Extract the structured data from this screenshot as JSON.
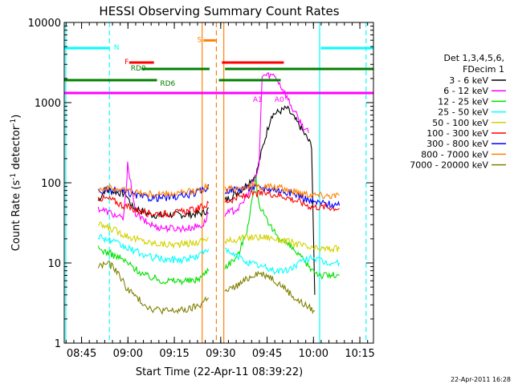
{
  "chart_data": {
    "type": "line",
    "title": "HESSI Observing Summary Count Rates",
    "xlabel": "Start Time (22-Apr-11 08:39:22)",
    "ylabel_main": "Count Rate (s",
    "ylabel_sup1": "-1",
    "ylabel_mid": " detector",
    "ylabel_sup2": "-1",
    "ylabel_end": ")",
    "y_scale": "log",
    "ylim": [
      1,
      10000
    ],
    "x_unit": "minutes since 08:39:22",
    "xlim": [
      0,
      100
    ],
    "x_ticks": [
      {
        "label": "08:45",
        "value": 5.6
      },
      {
        "label": "09:00",
        "value": 20.6
      },
      {
        "label": "09:15",
        "value": 35.6
      },
      {
        "label": "09:30",
        "value": 50.6
      },
      {
        "label": "09:45",
        "value": 65.6
      },
      {
        "label": "10:00",
        "value": 80.6
      },
      {
        "label": "10:15",
        "value": 95.6
      }
    ],
    "y_ticks": [
      {
        "label": "1",
        "value": 1
      },
      {
        "label": "10",
        "value": 10
      },
      {
        "label": "100",
        "value": 100
      },
      {
        "label": "1000",
        "value": 1000
      },
      {
        "label": "10000",
        "value": 10000
      }
    ],
    "legend": {
      "header": [
        "Det 1,3,4,5,6,",
        "FDecim 1"
      ],
      "placement": "right"
    },
    "series": [
      {
        "name": "3 - 6 keV",
        "color": "#000000",
        "gap": [
          48,
          52
        ],
        "points": [
          [
            11,
            60
          ],
          [
            13,
            80
          ],
          [
            16,
            78
          ],
          [
            20,
            72
          ],
          [
            22,
            50
          ],
          [
            25,
            45
          ],
          [
            28,
            40
          ],
          [
            31,
            39
          ],
          [
            35,
            40
          ],
          [
            40,
            40
          ],
          [
            45,
            42
          ],
          [
            47,
            48
          ],
          [
            52,
            60
          ],
          [
            57,
            80
          ],
          [
            62,
            125
          ],
          [
            64,
            260
          ],
          [
            67,
            700
          ],
          [
            72,
            850
          ],
          [
            76,
            520
          ],
          [
            80,
            290
          ],
          [
            81,
            4
          ]
        ]
      },
      {
        "name": "6 - 12 keV",
        "color": "#ff00ff",
        "gap": [
          48,
          52
        ],
        "points": [
          [
            11,
            48
          ],
          [
            15,
            42
          ],
          [
            19,
            35
          ],
          [
            20,
            75
          ],
          [
            20.5,
            185
          ],
          [
            21.5,
            100
          ],
          [
            23,
            42
          ],
          [
            26,
            33
          ],
          [
            30,
            28
          ],
          [
            35,
            27
          ],
          [
            40,
            27
          ],
          [
            45,
            30
          ],
          [
            47,
            45
          ],
          [
            52,
            40
          ],
          [
            57,
            50
          ],
          [
            61,
            95
          ],
          [
            63,
            160
          ],
          [
            64,
            2200
          ],
          [
            68,
            2200
          ],
          [
            69,
            1900
          ],
          [
            71,
            1400
          ],
          [
            74,
            820
          ],
          [
            77,
            520
          ],
          [
            79,
            420
          ]
        ]
      },
      {
        "name": "12 - 25 keV",
        "color": "#00e000",
        "gap": [
          48,
          52
        ],
        "points": [
          [
            11,
            15
          ],
          [
            15,
            13
          ],
          [
            19,
            11
          ],
          [
            22,
            9
          ],
          [
            26,
            7
          ],
          [
            32,
            6
          ],
          [
            37,
            6
          ],
          [
            42,
            6
          ],
          [
            45,
            7
          ],
          [
            47,
            9
          ],
          [
            52,
            9
          ],
          [
            56,
            12
          ],
          [
            59,
            25
          ],
          [
            61,
            70
          ],
          [
            62,
            110
          ],
          [
            63,
            55
          ],
          [
            66,
            30
          ],
          [
            70,
            20
          ],
          [
            74,
            15
          ],
          [
            79,
            9
          ],
          [
            83,
            7
          ],
          [
            89,
            7
          ]
        ]
      },
      {
        "name": "25 - 50 keV",
        "color": "#00ffff",
        "gap": [
          48,
          52
        ],
        "points": [
          [
            11,
            22
          ],
          [
            15,
            19
          ],
          [
            19,
            16
          ],
          [
            23,
            14
          ],
          [
            27,
            12
          ],
          [
            33,
            11
          ],
          [
            38,
            11
          ],
          [
            43,
            12
          ],
          [
            47,
            16
          ],
          [
            52,
            14
          ],
          [
            56,
            12
          ],
          [
            60,
            10
          ],
          [
            64,
            9
          ],
          [
            68,
            8
          ],
          [
            72,
            8
          ],
          [
            76,
            10
          ],
          [
            80,
            12
          ],
          [
            84,
            10
          ],
          [
            89,
            10
          ]
        ]
      },
      {
        "name": "50 - 100 keV",
        "color": "#d2d200",
        "gap": [
          48,
          52
        ],
        "points": [
          [
            11,
            30
          ],
          [
            15,
            27
          ],
          [
            19,
            23
          ],
          [
            23,
            20
          ],
          [
            27,
            18
          ],
          [
            33,
            17
          ],
          [
            38,
            17
          ],
          [
            43,
            18
          ],
          [
            47,
            21
          ],
          [
            52,
            18
          ],
          [
            56,
            20
          ],
          [
            61,
            21
          ],
          [
            66,
            21
          ],
          [
            71,
            19
          ],
          [
            76,
            17
          ],
          [
            80,
            15
          ],
          [
            85,
            15
          ],
          [
            89,
            15
          ]
        ]
      },
      {
        "name": "100 - 300 keV",
        "color": "#ff0000",
        "gap": [
          48,
          52
        ],
        "points": [
          [
            11,
            65
          ],
          [
            15,
            62
          ],
          [
            19,
            52
          ],
          [
            23,
            46
          ],
          [
            27,
            42
          ],
          [
            33,
            41
          ],
          [
            38,
            43
          ],
          [
            43,
            47
          ],
          [
            47,
            55
          ],
          [
            52,
            58
          ],
          [
            56,
            65
          ],
          [
            61,
            72
          ],
          [
            66,
            74
          ],
          [
            71,
            68
          ],
          [
            76,
            58
          ],
          [
            80,
            50
          ],
          [
            85,
            50
          ],
          [
            89,
            48
          ]
        ]
      },
      {
        "name": "300 - 800 keV",
        "color": "#0000ff",
        "gap": [
          48,
          52
        ],
        "points": [
          [
            11,
            78
          ],
          [
            15,
            80
          ],
          [
            19,
            77
          ],
          [
            23,
            70
          ],
          [
            27,
            65
          ],
          [
            33,
            65
          ],
          [
            38,
            68
          ],
          [
            43,
            75
          ],
          [
            47,
            90
          ],
          [
            52,
            80
          ],
          [
            56,
            84
          ],
          [
            61,
            87
          ],
          [
            66,
            86
          ],
          [
            71,
            78
          ],
          [
            76,
            70
          ],
          [
            80,
            58
          ],
          [
            85,
            55
          ],
          [
            89,
            52
          ]
        ]
      },
      {
        "name": "800 - 7000 keV",
        "color": "#ff8000",
        "gap": [
          48,
          52
        ],
        "points": [
          [
            11,
            84
          ],
          [
            15,
            86
          ],
          [
            19,
            82
          ],
          [
            23,
            76
          ],
          [
            27,
            72
          ],
          [
            33,
            72
          ],
          [
            38,
            74
          ],
          [
            43,
            80
          ],
          [
            47,
            92
          ],
          [
            52,
            82
          ],
          [
            56,
            86
          ],
          [
            61,
            90
          ],
          [
            66,
            90
          ],
          [
            71,
            84
          ],
          [
            76,
            76
          ],
          [
            80,
            72
          ],
          [
            85,
            70
          ],
          [
            89,
            70
          ]
        ]
      },
      {
        "name": "7000 - 20000 keV",
        "color": "#808000",
        "gap": [
          48,
          52
        ],
        "points": [
          [
            11,
            9
          ],
          [
            14,
            10
          ],
          [
            17,
            8
          ],
          [
            20,
            5
          ],
          [
            24,
            3.5
          ],
          [
            28,
            2.7
          ],
          [
            34,
            2.5
          ],
          [
            40,
            2.6
          ],
          [
            44,
            3
          ],
          [
            47,
            4
          ],
          [
            52,
            4.3
          ],
          [
            57,
            5.5
          ],
          [
            62,
            7.5
          ],
          [
            66,
            7
          ],
          [
            71,
            5
          ],
          [
            75,
            3.5
          ],
          [
            79,
            2.8
          ],
          [
            81,
            2.5
          ]
        ]
      }
    ],
    "state_bars": [
      {
        "label": "N",
        "color": "#00ffff",
        "segments": [
          [
            0,
            14.5
          ],
          [
            83,
            100
          ]
        ],
        "y_frac": 0.92
      },
      {
        "label": "F",
        "color": "#ff0000",
        "segments": [
          [
            21,
            29
          ],
          [
            51,
            71
          ]
        ],
        "y_frac": 0.875
      },
      {
        "label": "S",
        "color": "#ff8000",
        "segments": [
          [
            45,
            49
          ]
        ],
        "y_frac": 0.944
      },
      {
        "label": "RD0",
        "color": "#008000",
        "segments": [
          [
            25,
            47
          ],
          [
            52,
            74
          ],
          [
            72,
            100
          ]
        ],
        "y_frac": 0.855
      },
      {
        "label": "RD6",
        "color": "#008000",
        "segments": [
          [
            0,
            30
          ],
          [
            50,
            70
          ]
        ],
        "y_frac": 0.82
      },
      {
        "label": "A1",
        "color": "#ff00ff",
        "segments": [
          [
            0,
            100
          ]
        ],
        "y_frac": 0.78
      },
      {
        "label": "A0",
        "color": "#ff00ff",
        "segments": [],
        "y_frac": 0.78
      }
    ],
    "vertical_markers": [
      {
        "value": 0.5,
        "color": "#00ffff",
        "style": "solid"
      },
      {
        "value": 14.6,
        "color": "#00ffff",
        "style": "dashed"
      },
      {
        "value": 44.6,
        "color": "#ff8000",
        "style": "solid"
      },
      {
        "value": 49.2,
        "color": "#ff8000",
        "style": "dashed"
      },
      {
        "value": 51.6,
        "color": "#ff8000",
        "style": "solid"
      },
      {
        "value": 82.6,
        "color": "#00ffff",
        "style": "solid"
      },
      {
        "value": 97.6,
        "color": "#00ffff",
        "style": "dashed"
      }
    ]
  },
  "footer_date": "22-Apr-2011 16:28"
}
